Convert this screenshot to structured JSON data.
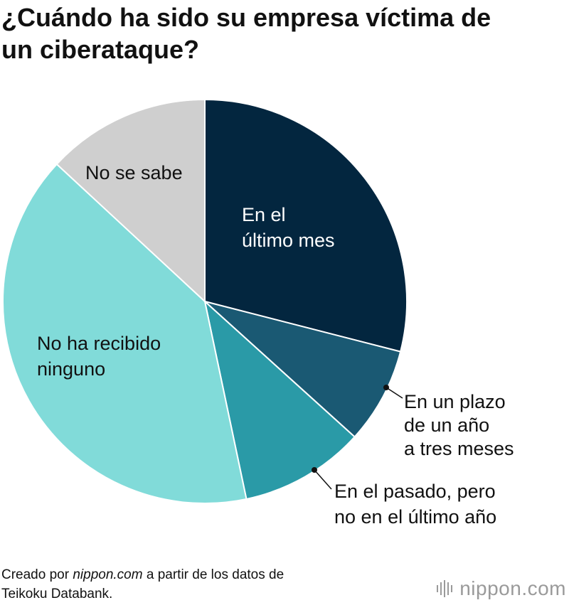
{
  "title_lines": [
    "¿Cuándo ha sido su empresa víctima de",
    "un ciberataque?"
  ],
  "chart_data": {
    "type": "pie",
    "title": "¿Cuándo ha sido su empresa víctima de un ciberataque?",
    "start": "12 o'clock",
    "direction": "clockwise",
    "slices": [
      {
        "name": "En el último mes",
        "label_lines": [
          "En el",
          "último mes"
        ],
        "value": 29.0,
        "color": "#03263f",
        "label_color": "#ffffff"
      },
      {
        "name": "En un plazo de un año a tres meses",
        "label_lines": [
          "En un plazo",
          "de un año",
          "a tres meses"
        ],
        "value": 7.7,
        "color": "#1a5973",
        "label_color": "#111111",
        "callout": true
      },
      {
        "name": "En el pasado, pero no en el último año",
        "label_lines": [
          "En el pasado, pero",
          "no en el último año"
        ],
        "value": 10.0,
        "color": "#2a9aa7",
        "label_color": "#111111",
        "callout": true
      },
      {
        "name": "No ha recibido ninguno",
        "label_lines": [
          "No ha recibido",
          "ninguno"
        ],
        "value": 40.2,
        "color": "#81dbd9",
        "label_color": "#111111"
      },
      {
        "name": "No se sabe",
        "label_lines": [
          "No se sabe"
        ],
        "value": 13.1,
        "color": "#cfcfcf",
        "label_color": "#111111"
      }
    ]
  },
  "footer": {
    "line1_pre": "Creado por ",
    "line1_source": "nippon.com",
    "line1_post": " a partir de los datos de",
    "line2": "Teikoku Databank."
  },
  "brand": {
    "name": "nippon",
    "suffix": ".com",
    "color": "#9a9a9a",
    "icon": "sound-bars-icon"
  }
}
